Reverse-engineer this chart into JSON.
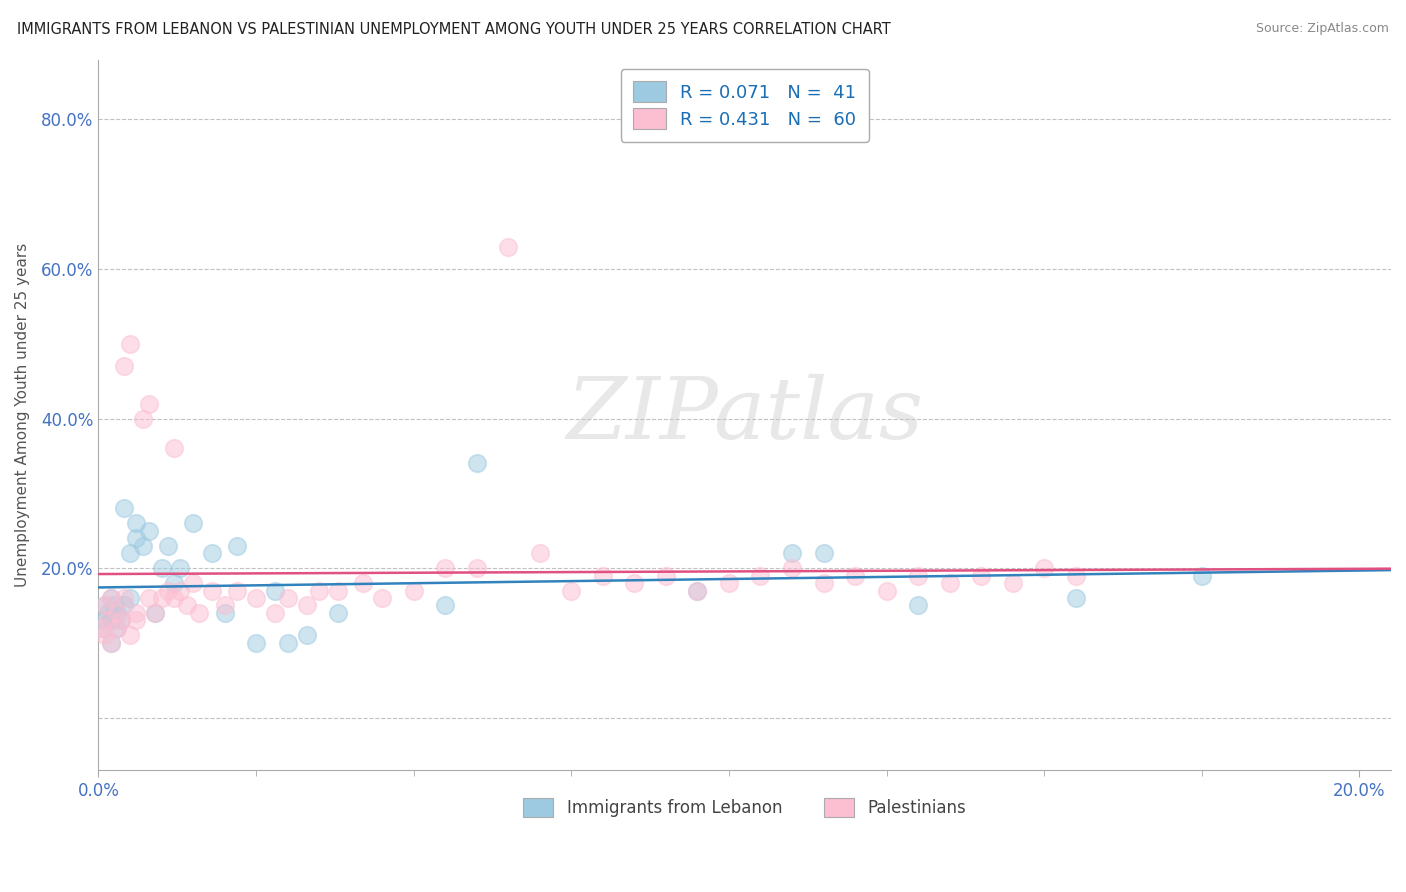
{
  "title": "IMMIGRANTS FROM LEBANON VS PALESTINIAN UNEMPLOYMENT AMONG YOUTH UNDER 25 YEARS CORRELATION CHART",
  "source": "Source: ZipAtlas.com",
  "ylabel": "Unemployment Among Youth under 25 years",
  "xlim": [
    0.0,
    0.205
  ],
  "ylim": [
    -0.07,
    0.88
  ],
  "yticks": [
    0.0,
    0.2,
    0.4,
    0.6,
    0.8
  ],
  "yticklabels": [
    "",
    "20.0%",
    "40.0%",
    "60.0%",
    "80.0%"
  ],
  "xtick_positions": [
    0.0,
    0.2
  ],
  "xticklabels": [
    "0.0%",
    "20.0%"
  ],
  "legend_r1": "R = 0.071",
  "legend_n1": "N =  41",
  "legend_r2": "R = 0.431",
  "legend_n2": "N =  60",
  "color_blue": "#9ecae1",
  "color_pink": "#fcbfd2",
  "color_line_blue": "#3182bd",
  "color_line_pink": "#e05080",
  "watermark": "ZIPatlas",
  "blue_x": [
    0.0005,
    0.001,
    0.001,
    0.0015,
    0.002,
    0.002,
    0.002,
    0.0025,
    0.003,
    0.003,
    0.0035,
    0.004,
    0.004,
    0.005,
    0.005,
    0.006,
    0.006,
    0.007,
    0.008,
    0.009,
    0.01,
    0.011,
    0.012,
    0.013,
    0.015,
    0.018,
    0.02,
    0.022,
    0.025,
    0.028,
    0.03,
    0.033,
    0.038,
    0.055,
    0.06,
    0.095,
    0.11,
    0.13,
    0.155,
    0.175,
    0.115
  ],
  "blue_y": [
    0.12,
    0.13,
    0.15,
    0.14,
    0.1,
    0.16,
    0.13,
    0.15,
    0.12,
    0.14,
    0.13,
    0.28,
    0.15,
    0.22,
    0.16,
    0.24,
    0.26,
    0.23,
    0.25,
    0.14,
    0.2,
    0.23,
    0.18,
    0.2,
    0.26,
    0.22,
    0.14,
    0.23,
    0.1,
    0.17,
    0.1,
    0.11,
    0.14,
    0.15,
    0.34,
    0.17,
    0.22,
    0.15,
    0.16,
    0.19,
    0.22
  ],
  "pink_x": [
    0.0005,
    0.001,
    0.001,
    0.0015,
    0.002,
    0.002,
    0.003,
    0.003,
    0.0035,
    0.004,
    0.004,
    0.005,
    0.005,
    0.006,
    0.006,
    0.007,
    0.008,
    0.008,
    0.009,
    0.01,
    0.011,
    0.012,
    0.012,
    0.013,
    0.014,
    0.015,
    0.016,
    0.018,
    0.02,
    0.022,
    0.025,
    0.028,
    0.03,
    0.033,
    0.035,
    0.038,
    0.042,
    0.045,
    0.05,
    0.055,
    0.06,
    0.065,
    0.07,
    0.075,
    0.08,
    0.085,
    0.09,
    0.095,
    0.1,
    0.105,
    0.11,
    0.115,
    0.12,
    0.125,
    0.13,
    0.135,
    0.14,
    0.145,
    0.15,
    0.155
  ],
  "pink_y": [
    0.12,
    0.11,
    0.15,
    0.13,
    0.1,
    0.16,
    0.12,
    0.14,
    0.13,
    0.16,
    0.47,
    0.11,
    0.5,
    0.14,
    0.13,
    0.4,
    0.16,
    0.42,
    0.14,
    0.16,
    0.17,
    0.36,
    0.16,
    0.17,
    0.15,
    0.18,
    0.14,
    0.17,
    0.15,
    0.17,
    0.16,
    0.14,
    0.16,
    0.15,
    0.17,
    0.17,
    0.18,
    0.16,
    0.17,
    0.2,
    0.2,
    0.63,
    0.22,
    0.17,
    0.19,
    0.18,
    0.19,
    0.17,
    0.18,
    0.19,
    0.2,
    0.18,
    0.19,
    0.17,
    0.19,
    0.18,
    0.19,
    0.18,
    0.2,
    0.19
  ],
  "background_color": "#ffffff",
  "grid_color": "#bbbbbb"
}
